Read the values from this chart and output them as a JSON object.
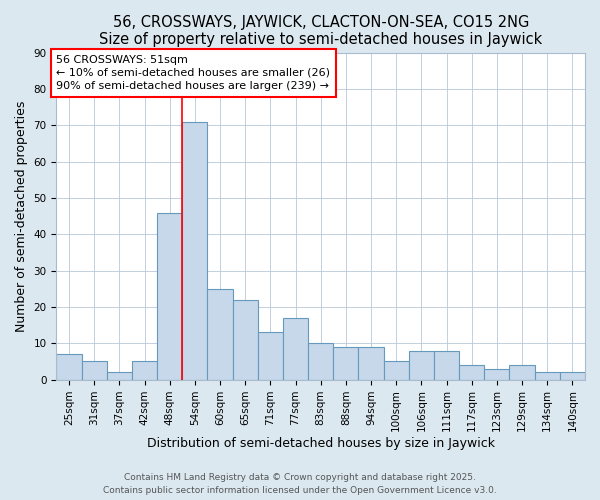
{
  "title": "56, CROSSWAYS, JAYWICK, CLACTON-ON-SEA, CO15 2NG",
  "subtitle": "Size of property relative to semi-detached houses in Jaywick",
  "xlabel": "Distribution of semi-detached houses by size in Jaywick",
  "ylabel": "Number of semi-detached properties",
  "categories": [
    "25sqm",
    "31sqm",
    "37sqm",
    "42sqm",
    "48sqm",
    "54sqm",
    "60sqm",
    "65sqm",
    "71sqm",
    "77sqm",
    "83sqm",
    "88sqm",
    "94sqm",
    "100sqm",
    "106sqm",
    "111sqm",
    "117sqm",
    "123sqm",
    "129sqm",
    "134sqm",
    "140sqm"
  ],
  "values": [
    7,
    5,
    2,
    5,
    46,
    71,
    25,
    22,
    13,
    17,
    10,
    9,
    9,
    5,
    8,
    8,
    4,
    3,
    4,
    2,
    2
  ],
  "bar_color": "#c6d8ea",
  "bar_edge_color": "#6699bb",
  "bar_width": 1.0,
  "vline_x": 4.5,
  "vline_label": "56 CROSSWAYS: 51sqm",
  "annotation_line1": "← 10% of semi-detached houses are smaller (26)",
  "annotation_line2": "90% of semi-detached houses are larger (239) →",
  "ylim": [
    0,
    90
  ],
  "yticks": [
    0,
    10,
    20,
    30,
    40,
    50,
    60,
    70,
    80,
    90
  ],
  "bg_color": "#dce8f0",
  "plot_bg_color": "#ffffff",
  "footer1": "Contains HM Land Registry data © Crown copyright and database right 2025.",
  "footer2": "Contains public sector information licensed under the Open Government Licence v3.0.",
  "title_fontsize": 10.5,
  "axis_label_fontsize": 9,
  "tick_fontsize": 7.5,
  "annotation_fontsize": 8,
  "footer_fontsize": 6.5
}
